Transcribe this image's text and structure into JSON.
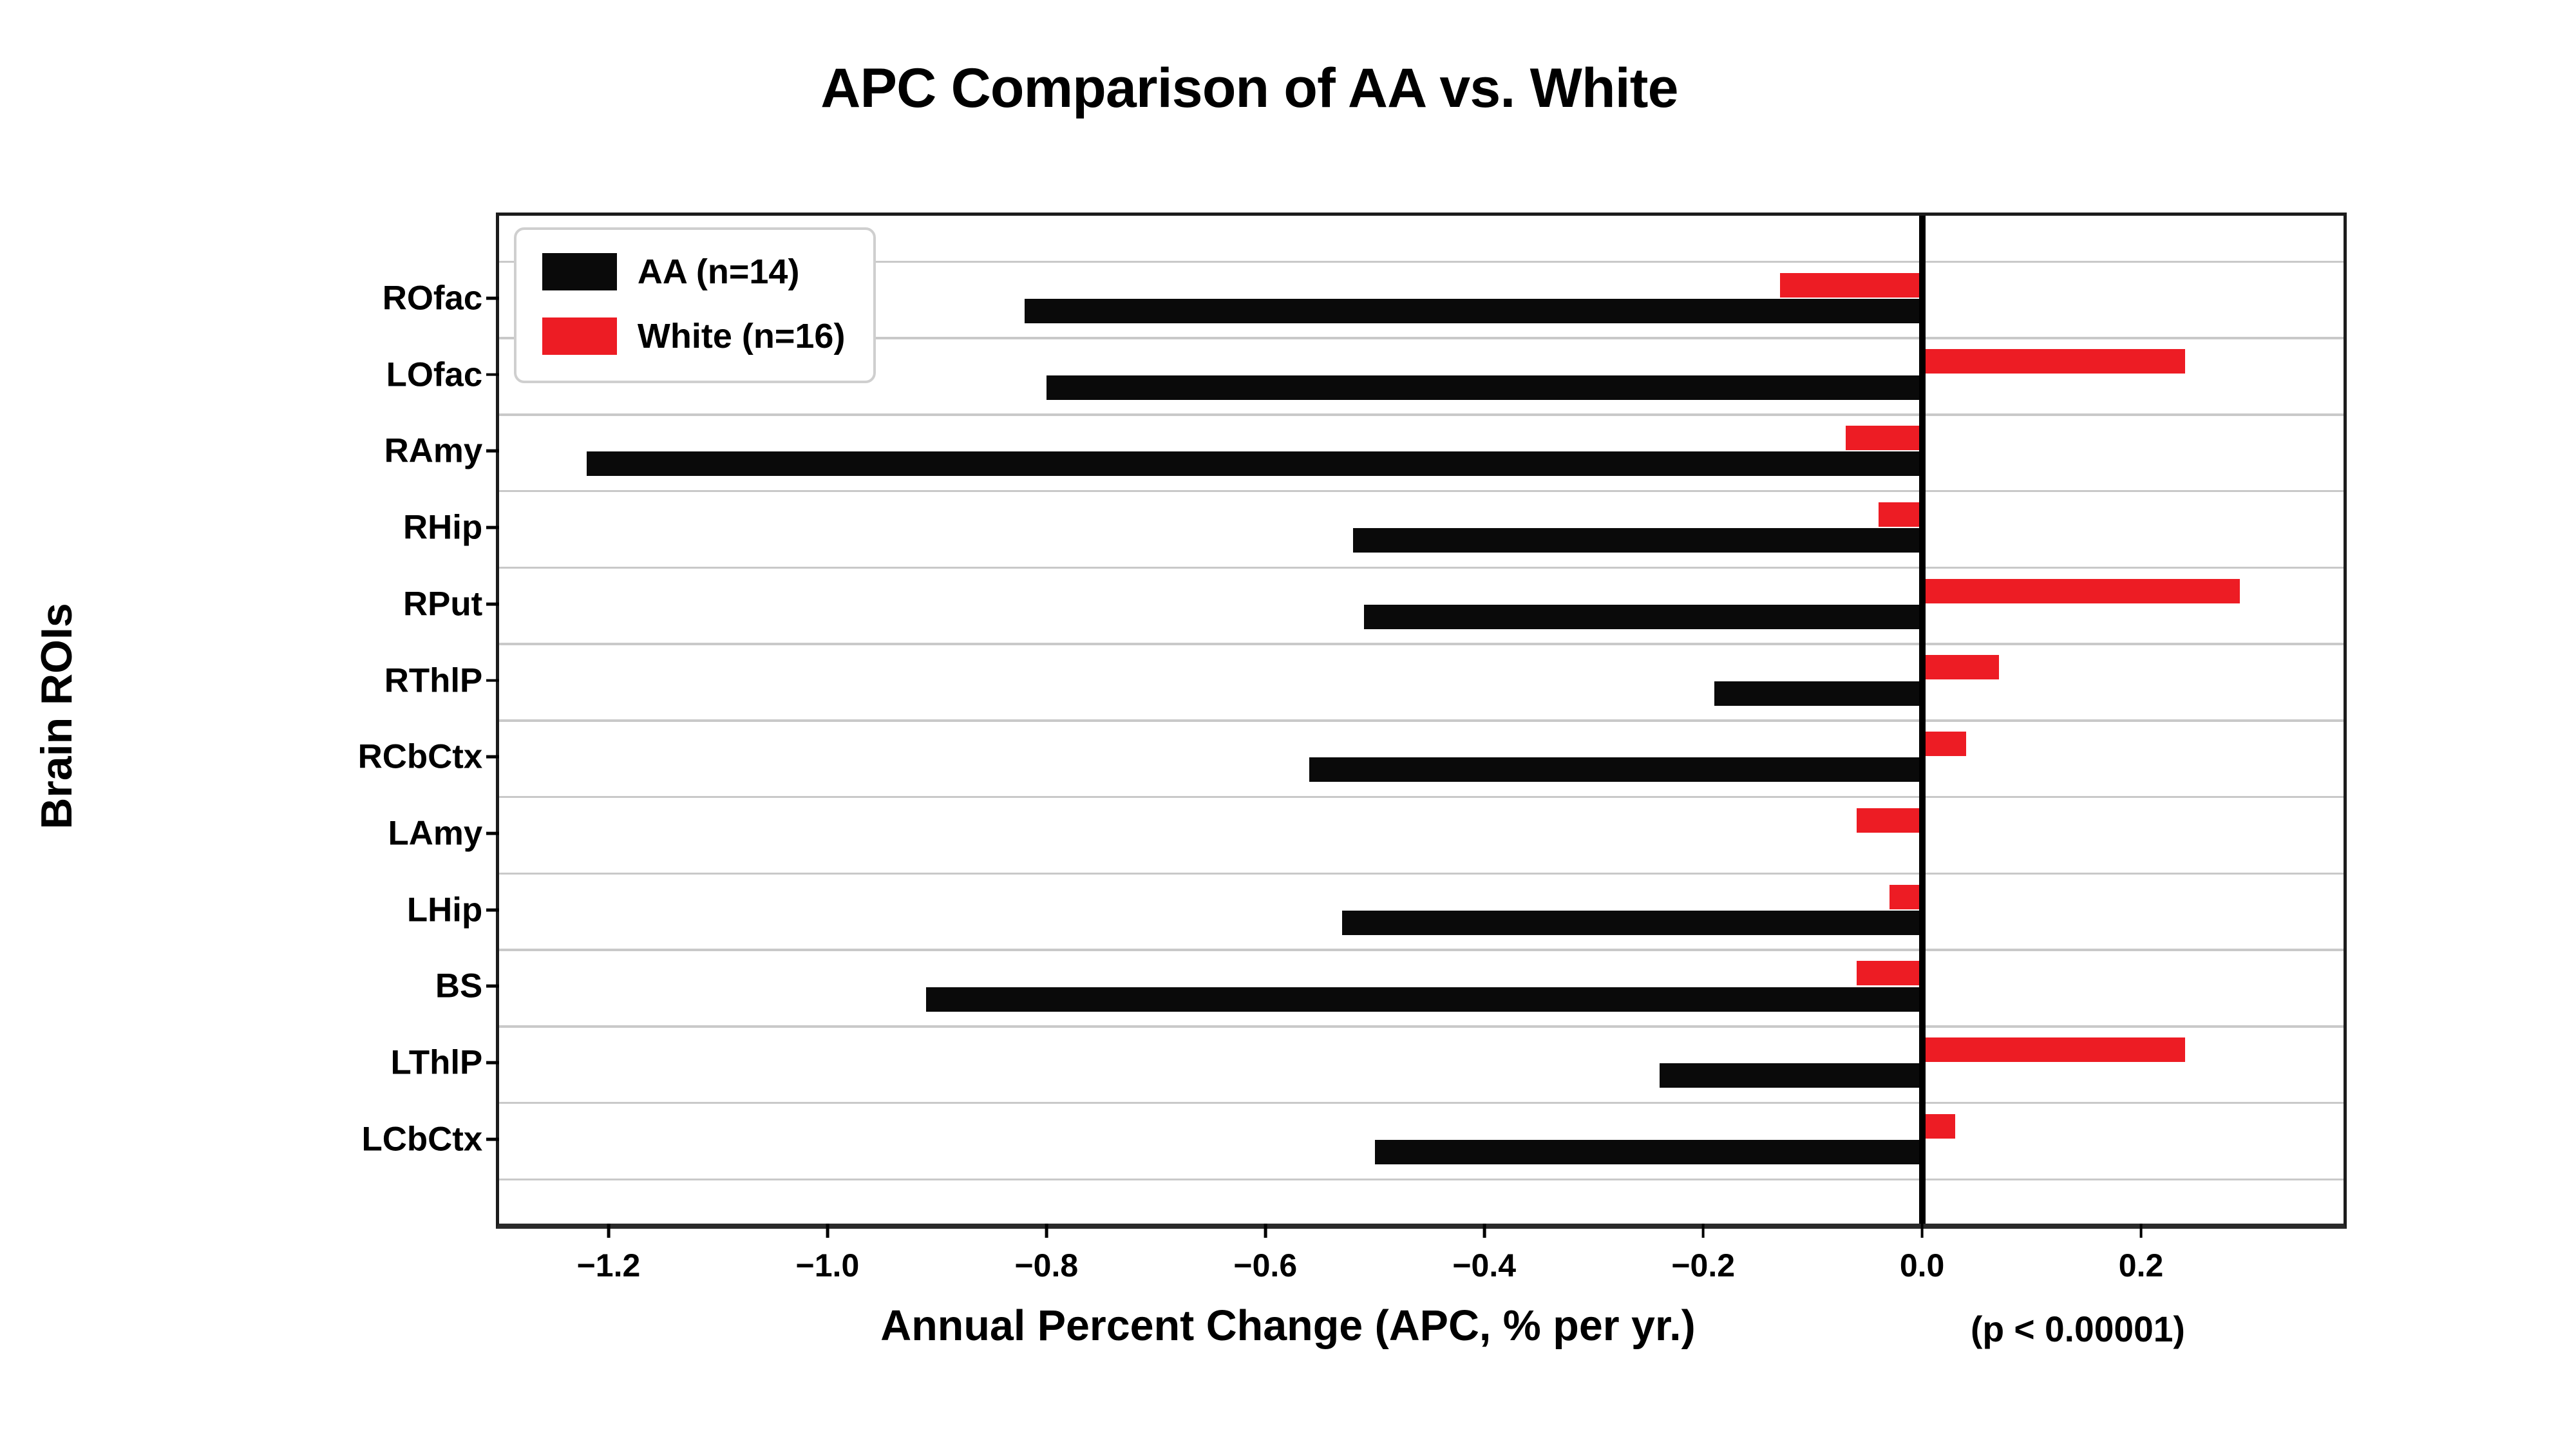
{
  "title": "APC Comparison of AA vs. White",
  "legend": {
    "items": [
      {
        "label": "AA (n=14)",
        "color": "#0a0a0a"
      },
      {
        "label": "White (n=16)",
        "color": "#ED1C24"
      }
    ]
  },
  "annotation": "(p < 0.00001)",
  "chart_data": {
    "type": "bar",
    "orientation": "horizontal",
    "title": "APC Comparison of AA vs. White",
    "xlabel": "Annual Percent Change (APC, % per yr.)",
    "ylabel": "Brain ROIs",
    "categories": [
      "ROfac",
      "LOfac",
      "RAmy",
      "RHip",
      "RPut",
      "RThlP",
      "RCbCtx",
      "LAmy",
      "LHip",
      "BS",
      "LThlP",
      "LCbCtx"
    ],
    "series": [
      {
        "name": "AA (n=14)",
        "color": "#0a0a0a",
        "values": [
          -0.82,
          -0.8,
          -1.22,
          -0.52,
          -0.51,
          -0.19,
          -0.56,
          0.0,
          -0.53,
          -0.91,
          -0.24,
          -0.5
        ]
      },
      {
        "name": "White (n=16)",
        "color": "#ED1C24",
        "values": [
          -0.13,
          0.24,
          -0.07,
          -0.04,
          0.29,
          0.07,
          0.04,
          -0.06,
          -0.03,
          -0.06,
          0.24,
          0.03
        ]
      }
    ],
    "x_ticks": [
      {
        "label": "−1.2",
        "value": -1.2
      },
      {
        "label": "−1.0",
        "value": -1.0
      },
      {
        "label": "−0.8",
        "value": -0.8
      },
      {
        "label": "−0.6",
        "value": -0.6
      },
      {
        "label": "−0.4",
        "value": -0.4
      },
      {
        "label": "−0.2",
        "value": -0.2
      },
      {
        "label": "0.0",
        "value": 0.0
      },
      {
        "label": "0.2",
        "value": 0.2
      }
    ],
    "xlim": [
      -1.3,
      0.385
    ],
    "grid": "horizontal-category-boundaries",
    "zero_line": true,
    "gridline_color": "#c9c9c9"
  }
}
